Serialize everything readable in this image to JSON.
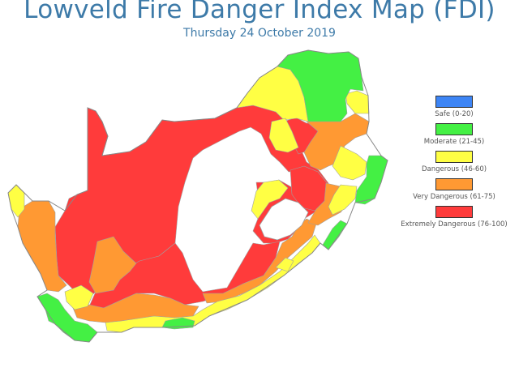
{
  "title": "Lowveld Fire Danger Index Map (FDI)",
  "subtitle": "Thursday 24 October 2019",
  "colors": {
    "safe": "#3d85f5",
    "moderate": "#44f044",
    "dangerous": "#ffff44",
    "very_dangerous": "#ff9933",
    "extremely_dangerous": "#ff3b3b",
    "border": "#999999"
  },
  "legend": [
    {
      "label": "Safe (0-20)",
      "color": "#3d85f5"
    },
    {
      "label": "Moderate (21-45)",
      "color": "#44f044"
    },
    {
      "label": "Dangerous (46-60)",
      "color": "#ffff44"
    },
    {
      "label": "Very Dangerous (61-75)",
      "color": "#ff9933"
    },
    {
      "label": "Extremely Dangerous (76-100)",
      "color": "#ff3b3b"
    }
  ]
}
